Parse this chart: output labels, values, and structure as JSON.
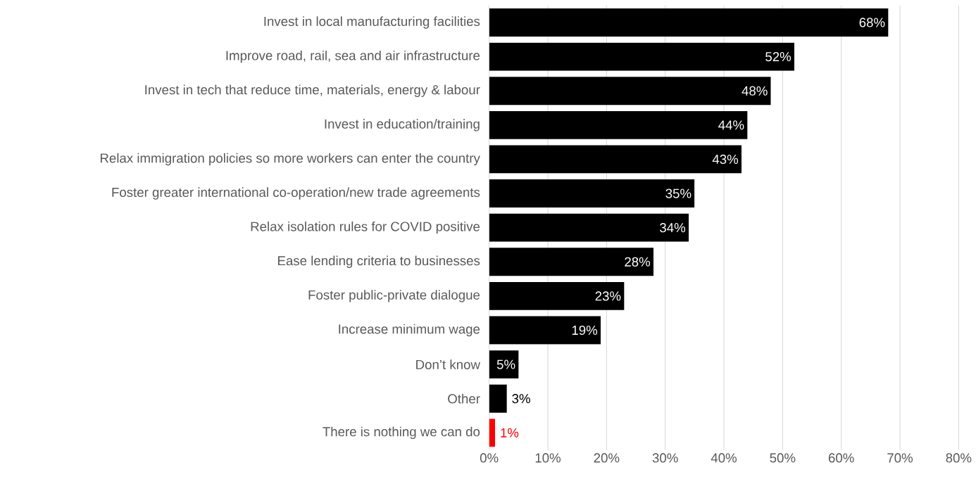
{
  "chart_data": {
    "type": "bar",
    "orientation": "horizontal",
    "categories": [
      "Invest in local manufacturing facilities",
      "Improve road, rail, sea and air infrastructure",
      "Invest in tech that reduce time, materials, energy & labour",
      "Invest in education/training",
      "Relax immigration policies so more workers can enter the country",
      "Foster greater international co-operation/new trade agreements",
      "Relax isolation rules for COVID positive",
      "Ease lending criteria to businesses",
      "Foster public-private dialogue",
      "Increase minimum wage",
      "Don’t know",
      "Other",
      "There is nothing we can do"
    ],
    "values": [
      68,
      52,
      48,
      44,
      43,
      35,
      34,
      28,
      23,
      19,
      5,
      3,
      1
    ],
    "colors": [
      "#000000",
      "#000000",
      "#000000",
      "#000000",
      "#000000",
      "#000000",
      "#000000",
      "#000000",
      "#000000",
      "#000000",
      "#000000",
      "#000000",
      "#ff0000"
    ],
    "value_labels": [
      "68%",
      "52%",
      "48%",
      "44%",
      "43%",
      "35%",
      "34%",
      "28%",
      "23%",
      "19%",
      "5%",
      "3%",
      "1%"
    ],
    "xlim": [
      0,
      80
    ],
    "xticks": [
      {
        "value": 0,
        "label": "0%"
      },
      {
        "value": 10,
        "label": "10%"
      },
      {
        "value": 20,
        "label": "20%"
      },
      {
        "value": 30,
        "label": "30%"
      },
      {
        "value": 40,
        "label": "40%"
      },
      {
        "value": 50,
        "label": "50%"
      },
      {
        "value": 60,
        "label": "60%"
      },
      {
        "value": 70,
        "label": "70%"
      },
      {
        "value": 80,
        "label": "80%"
      }
    ],
    "grid": "x"
  }
}
